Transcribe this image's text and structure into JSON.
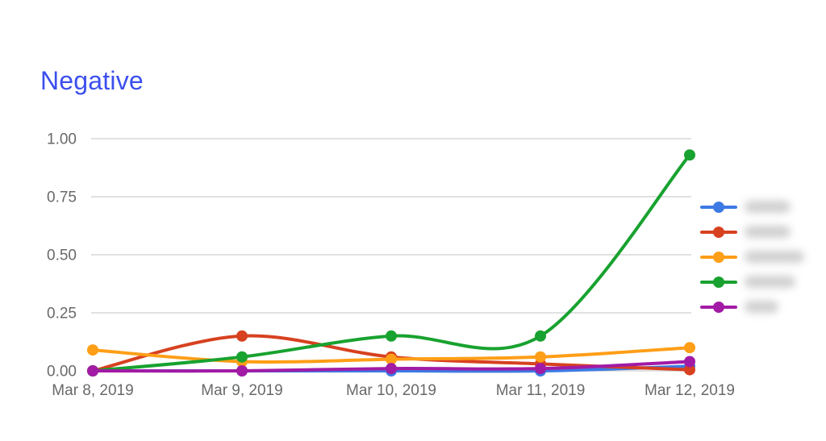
{
  "title": {
    "text": "Negative",
    "color": "#3c4fee"
  },
  "axis": {
    "text_color": "#68696b",
    "grid_color": "#d7d7d7",
    "font_size": 19
  },
  "chart_data": {
    "type": "line",
    "title": "Negative",
    "xlabel": "",
    "ylabel": "",
    "x_labels": [
      "Mar 8, 2019",
      "Mar 9, 2019",
      "Mar 10, 2019",
      "Mar 11, 2019",
      "Mar 12, 2019"
    ],
    "y_ticks": [
      1.0,
      0.75,
      0.5,
      0.25,
      0.0
    ],
    "y_tick_labels": [
      "1.00",
      "0.75",
      "0.50",
      "0.25",
      "0.00"
    ],
    "ylim": [
      0,
      1
    ],
    "grid": true,
    "smooth": true,
    "legend_position": "right",
    "legend_labels_blurred": true,
    "series": [
      {
        "name": "series-1-blue",
        "color": "#3d7ae4",
        "values": [
          0.0,
          0.0,
          0.0,
          0.0,
          0.02
        ],
        "legend_blur_width": 57
      },
      {
        "name": "series-2-red",
        "color": "#d7411f",
        "values": [
          0.0,
          0.15,
          0.06,
          0.03,
          0.005
        ],
        "legend_blur_width": 57
      },
      {
        "name": "series-3-orange",
        "color": "#ff9e17",
        "values": [
          0.09,
          0.04,
          0.05,
          0.06,
          0.1
        ],
        "legend_blur_width": 74
      },
      {
        "name": "series-4-green",
        "color": "#18a22f",
        "values": [
          0.0,
          0.06,
          0.15,
          0.15,
          0.93
        ],
        "legend_blur_width": 63
      },
      {
        "name": "series-5-purple",
        "color": "#a21ba5",
        "values": [
          0.0,
          0.0,
          0.01,
          0.01,
          0.04
        ],
        "legend_blur_width": 42
      }
    ]
  }
}
